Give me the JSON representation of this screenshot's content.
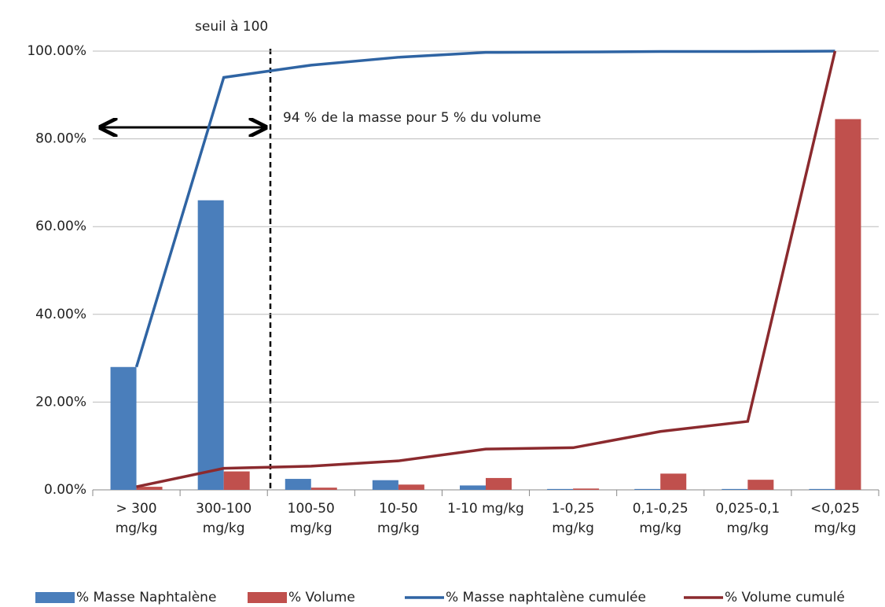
{
  "chart_data": {
    "type": "bar",
    "categories": [
      "> 300\nmg/kg",
      "300-100\nmg/kg",
      "100-50\nmg/kg",
      "10-50\nmg/kg",
      "1-10 mg/kg",
      "1-0,25\nmg/kg",
      "0,1-0,25\nmg/kg",
      "0,025-0,1\nmg/kg",
      "<0,025\nmg/kg"
    ],
    "series": [
      {
        "name": "% Masse Naphtalène",
        "type": "bar",
        "color": "#4a7ebb",
        "values": [
          28,
          66,
          2.5,
          2.2,
          1,
          0.2,
          0.2,
          0.2,
          0.2
        ]
      },
      {
        "name": "% Volume",
        "type": "bar",
        "color": "#c0504d",
        "values": [
          0.7,
          4.2,
          0.5,
          1.2,
          2.7,
          0.3,
          3.7,
          2.3,
          84.5
        ]
      },
      {
        "name": "% Masse naphtalène cumulée",
        "type": "line",
        "color": "#2f64a3",
        "values": [
          28,
          94,
          96.8,
          98.6,
          99.7,
          99.8,
          99.9,
          99.9,
          100
        ]
      },
      {
        "name": "% Volume cumulé",
        "type": "line",
        "color": "#8b2a2e",
        "values": [
          0.7,
          4.9,
          5.4,
          6.6,
          9.3,
          9.6,
          13.3,
          15.6,
          100
        ]
      }
    ],
    "ylim": [
      0,
      100
    ],
    "yticks": [
      {
        "value": 0,
        "label": "0.00%"
      },
      {
        "value": 20,
        "label": "20.00%"
      },
      {
        "value": 40,
        "label": "40.00%"
      },
      {
        "value": 60,
        "label": "60.00%"
      },
      {
        "value": 80,
        "label": "80.00%"
      },
      {
        "value": 100,
        "label": "100.00%"
      }
    ],
    "grid": true,
    "annotations": [
      "seuil à 100",
      "94 % de la masse pour 5 % du volume"
    ]
  }
}
